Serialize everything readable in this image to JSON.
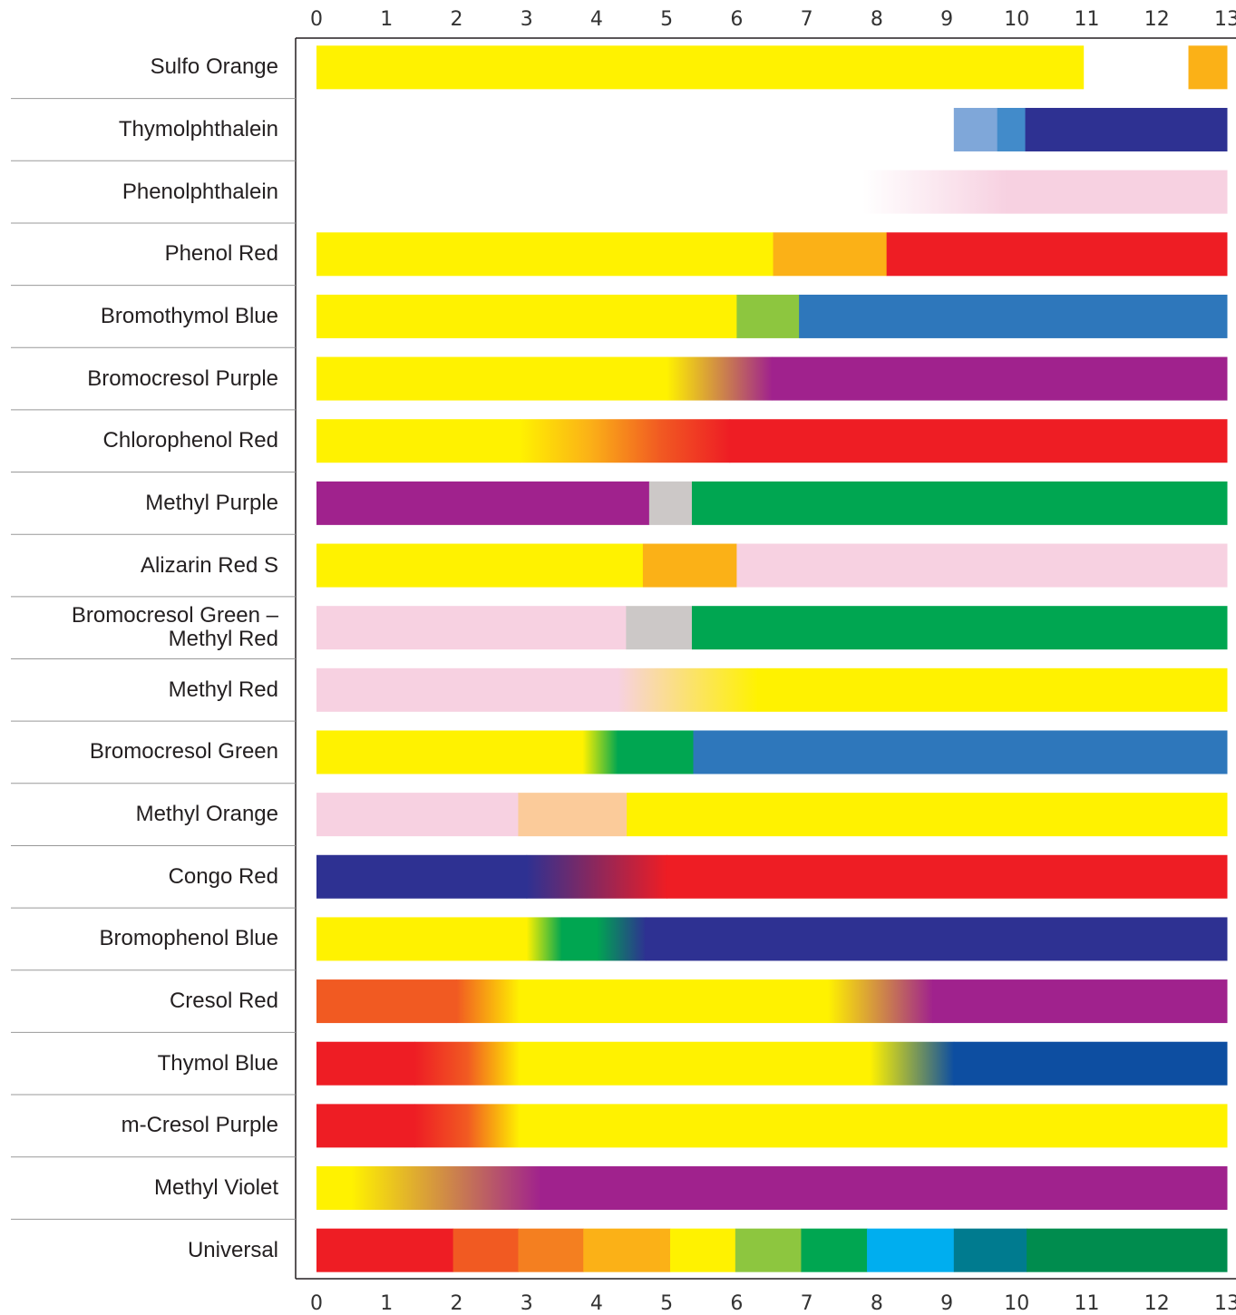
{
  "chart_data": {
    "type": "range-bar",
    "xlim": [
      0,
      13
    ],
    "xticks": [
      0,
      1,
      2,
      3,
      4,
      5,
      6,
      7,
      8,
      9,
      10,
      11,
      12,
      13
    ],
    "series": [
      {
        "name": "Sulfo Orange",
        "segments": [
          {
            "start": 0,
            "end": 10.95,
            "color": "#fff200"
          },
          {
            "start": 12.45,
            "end": 13,
            "color": "#fbb117"
          }
        ]
      },
      {
        "name": "Thymolphthalein",
        "segments": [
          {
            "start": 9.1,
            "end": 9.72,
            "color": "#7fa7d9"
          },
          {
            "start": 9.72,
            "end": 10.12,
            "color": "#428bca"
          },
          {
            "start": 10.12,
            "end": 13,
            "color": "#2e3192"
          }
        ]
      },
      {
        "name": "Phenolphthalein",
        "segments": [
          {
            "start": 7.8,
            "end": 9.85,
            "colors": [
              "#ffffff",
              "#f7d1e1"
            ]
          },
          {
            "start": 9.85,
            "end": 13,
            "color": "#f7d1e1"
          }
        ]
      },
      {
        "name": "Phenol Red",
        "segments": [
          {
            "start": 0,
            "end": 6.52,
            "color": "#fff200"
          },
          {
            "start": 6.52,
            "end": 8.14,
            "color": "#fbb117"
          },
          {
            "start": 8.14,
            "end": 13,
            "color": "#ee1d24"
          }
        ]
      },
      {
        "name": "Bromothymol Blue",
        "segments": [
          {
            "start": 0,
            "end": 6.0,
            "color": "#fff200"
          },
          {
            "start": 6.0,
            "end": 6.89,
            "color": "#8dc63f"
          },
          {
            "start": 6.89,
            "end": 13,
            "color": "#2e77bb"
          }
        ]
      },
      {
        "name": "Bromocresol Purple",
        "segments": [
          {
            "start": 0,
            "end": 5.0,
            "color": "#fff200"
          },
          {
            "start": 5.0,
            "end": 6.5,
            "colors": [
              "#fff200",
              "#a0228d"
            ]
          },
          {
            "start": 6.5,
            "end": 13,
            "color": "#a0228d"
          }
        ]
      },
      {
        "name": "Chlorophenol Red",
        "segments": [
          {
            "start": 0,
            "end": 2.9,
            "color": "#fff200"
          },
          {
            "start": 2.9,
            "end": 5.9,
            "colors": [
              "#fff200",
              "#fbb117",
              "#f15a22",
              "#ee1d24"
            ]
          },
          {
            "start": 5.9,
            "end": 13,
            "color": "#ee1d24"
          }
        ]
      },
      {
        "name": "Methyl Purple",
        "segments": [
          {
            "start": 0,
            "end": 4.75,
            "color": "#a0228d"
          },
          {
            "start": 4.75,
            "end": 5.36,
            "color": "#ccc8c7"
          },
          {
            "start": 5.36,
            "end": 13,
            "color": "#00a651"
          }
        ]
      },
      {
        "name": "Alizarin Red S",
        "segments": [
          {
            "start": 0,
            "end": 4.66,
            "color": "#fff200"
          },
          {
            "start": 4.66,
            "end": 6.0,
            "color": "#fbb117"
          },
          {
            "start": 6.0,
            "end": 13,
            "color": "#f7d1e1"
          }
        ]
      },
      {
        "name": "Bromocresol Green – Methyl Red",
        "segments": [
          {
            "start": 0,
            "end": 4.42,
            "color": "#f7d1e1"
          },
          {
            "start": 4.42,
            "end": 5.36,
            "color": "#ccc8c7"
          },
          {
            "start": 5.36,
            "end": 13,
            "color": "#00a651"
          }
        ]
      },
      {
        "name": "Methyl Red",
        "segments": [
          {
            "start": 0,
            "end": 4.3,
            "color": "#f7d1e1"
          },
          {
            "start": 4.3,
            "end": 6.3,
            "colors": [
              "#f7d1e1",
              "#fff200"
            ]
          },
          {
            "start": 6.3,
            "end": 13,
            "color": "#fff200"
          }
        ]
      },
      {
        "name": "Bromocresol Green",
        "segments": [
          {
            "start": 0,
            "end": 3.8,
            "color": "#fff200"
          },
          {
            "start": 3.8,
            "end": 4.3,
            "colors": [
              "#fff200",
              "#00a651"
            ]
          },
          {
            "start": 4.3,
            "end": 5.38,
            "color": "#00a651"
          },
          {
            "start": 5.38,
            "end": 13,
            "color": "#2e77bb"
          }
        ]
      },
      {
        "name": "Methyl Orange",
        "segments": [
          {
            "start": 0,
            "end": 2.88,
            "color": "#f7d1e1"
          },
          {
            "start": 2.88,
            "end": 4.43,
            "color": "#fbcb9a"
          },
          {
            "start": 4.43,
            "end": 13,
            "color": "#fff200"
          }
        ]
      },
      {
        "name": "Congo Red",
        "segments": [
          {
            "start": 0,
            "end": 3.0,
            "color": "#2e3192"
          },
          {
            "start": 3.0,
            "end": 5.0,
            "colors": [
              "#2e3192",
              "#ee1d24"
            ]
          },
          {
            "start": 5.0,
            "end": 13,
            "color": "#ee1d24"
          }
        ]
      },
      {
        "name": "Bromophenol Blue",
        "segments": [
          {
            "start": 0,
            "end": 3.0,
            "color": "#fff200"
          },
          {
            "start": 3.0,
            "end": 3.5,
            "colors": [
              "#fff200",
              "#00a651"
            ]
          },
          {
            "start": 3.5,
            "end": 4.0,
            "color": "#00a651"
          },
          {
            "start": 4.0,
            "end": 4.7,
            "colors": [
              "#00a651",
              "#2e3192"
            ]
          },
          {
            "start": 4.7,
            "end": 13,
            "color": "#2e3192"
          }
        ]
      },
      {
        "name": "Cresol Red",
        "segments": [
          {
            "start": 0,
            "end": 2.0,
            "color": "#f15a22"
          },
          {
            "start": 2.0,
            "end": 2.9,
            "colors": [
              "#f15a22",
              "#fff200"
            ]
          },
          {
            "start": 2.9,
            "end": 7.3,
            "color": "#fff200"
          },
          {
            "start": 7.3,
            "end": 8.8,
            "colors": [
              "#fff200",
              "#a0228d"
            ]
          },
          {
            "start": 8.8,
            "end": 13,
            "color": "#a0228d"
          }
        ]
      },
      {
        "name": "Thymol Blue",
        "segments": [
          {
            "start": 0,
            "end": 1.4,
            "color": "#ee1d24"
          },
          {
            "start": 1.4,
            "end": 2.9,
            "colors": [
              "#ee1d24",
              "#f15a22",
              "#fff200"
            ]
          },
          {
            "start": 2.9,
            "end": 7.9,
            "color": "#fff200"
          },
          {
            "start": 7.9,
            "end": 9.1,
            "colors": [
              "#fff200",
              "#0d4ea1"
            ]
          },
          {
            "start": 9.1,
            "end": 13,
            "color": "#0d4ea1"
          }
        ]
      },
      {
        "name": "m-Cresol Purple",
        "segments": [
          {
            "start": 0,
            "end": 1.4,
            "color": "#ee1d24"
          },
          {
            "start": 1.4,
            "end": 2.9,
            "colors": [
              "#ee1d24",
              "#f15a22",
              "#fff200"
            ]
          },
          {
            "start": 2.9,
            "end": 13,
            "color": "#fff200"
          }
        ]
      },
      {
        "name": "Methyl Violet",
        "segments": [
          {
            "start": 0,
            "end": 0.5,
            "color": "#fff200"
          },
          {
            "start": 0.5,
            "end": 3.2,
            "colors": [
              "#fff200",
              "#a0228d"
            ]
          },
          {
            "start": 3.2,
            "end": 13,
            "color": "#a0228d"
          }
        ]
      },
      {
        "name": "Universal",
        "segments": [
          {
            "start": 0,
            "end": 1.95,
            "color": "#ee1d24"
          },
          {
            "start": 1.95,
            "end": 2.88,
            "color": "#f15a22"
          },
          {
            "start": 2.88,
            "end": 3.81,
            "color": "#f47f20"
          },
          {
            "start": 3.81,
            "end": 5.05,
            "color": "#fbb117"
          },
          {
            "start": 5.05,
            "end": 5.98,
            "color": "#fff200"
          },
          {
            "start": 5.98,
            "end": 6.92,
            "color": "#8dc63f"
          },
          {
            "start": 6.92,
            "end": 7.86,
            "color": "#00a651"
          },
          {
            "start": 7.86,
            "end": 9.1,
            "color": "#00aeef"
          },
          {
            "start": 9.1,
            "end": 10.14,
            "color": "#007b8f"
          },
          {
            "start": 10.14,
            "end": 13,
            "color": "#008c4e"
          }
        ]
      }
    ]
  }
}
